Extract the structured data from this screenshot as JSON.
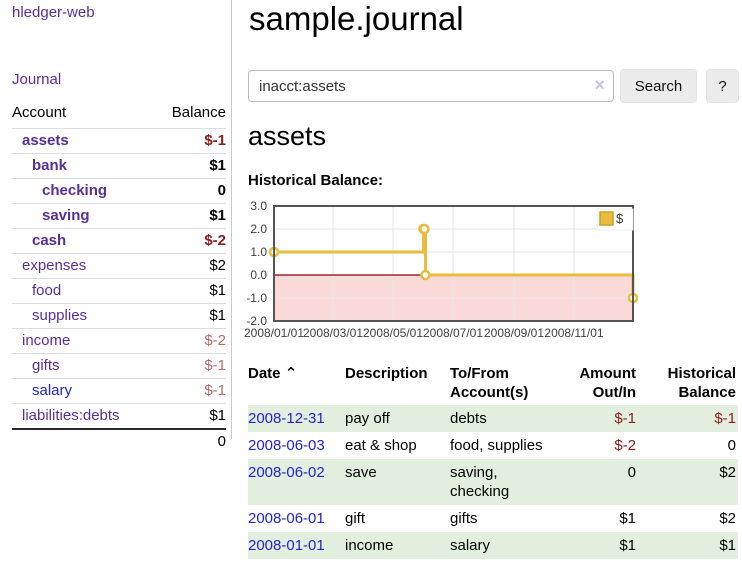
{
  "theme": {
    "link_purple": "#55309b",
    "link_blue": "#2323cf",
    "negative_strong": "#8e1b1b",
    "negative_faded": "#b76c6c",
    "stripe_green": "#e3efde",
    "chart_line": "#e9bc3d",
    "chart_negative_fill": "#fad9d9",
    "chart_zero_line": "#8b0000",
    "chart_grid": "#e6e6e6",
    "chart_border": "#545454"
  },
  "sidebar": {
    "app_title": "hledger-web",
    "nav_journal": "Journal",
    "accounts": {
      "col_account": "Account",
      "col_balance": "Balance",
      "rows": [
        {
          "name": "assets",
          "balance": "$-1",
          "indent": 1,
          "in_account": true,
          "balance_class": "neg-strong",
          "link_blue": false
        },
        {
          "name": "bank",
          "balance": "$1",
          "indent": 2,
          "in_account": true,
          "balance_class": "",
          "link_blue": false
        },
        {
          "name": "checking",
          "balance": "0",
          "indent": 3,
          "in_account": true,
          "balance_class": "",
          "link_blue": false
        },
        {
          "name": "saving",
          "balance": "$1",
          "indent": 3,
          "in_account": true,
          "balance_class": "",
          "link_blue": false
        },
        {
          "name": "cash",
          "balance": "$-2",
          "indent": 2,
          "in_account": true,
          "balance_class": "neg-strong",
          "link_blue": false
        },
        {
          "name": "expenses",
          "balance": "$2",
          "indent": 1,
          "in_account": false,
          "balance_class": "",
          "link_blue": false
        },
        {
          "name": "food",
          "balance": "$1",
          "indent": 2,
          "in_account": false,
          "balance_class": "",
          "link_blue": false
        },
        {
          "name": "supplies",
          "balance": "$1",
          "indent": 2,
          "in_account": false,
          "balance_class": "",
          "link_blue": false
        },
        {
          "name": "income",
          "balance": "$-2",
          "indent": 1,
          "in_account": false,
          "balance_class": "neg-faded",
          "link_blue": false
        },
        {
          "name": "gifts",
          "balance": "$-1",
          "indent": 2,
          "in_account": false,
          "balance_class": "neg-faded",
          "link_blue": false
        },
        {
          "name": "salary",
          "balance": "$-1",
          "indent": 2,
          "in_account": false,
          "balance_class": "neg-faded",
          "link_blue": true
        },
        {
          "name": "liabilities:debts",
          "balance": "$1",
          "indent": 1,
          "in_account": false,
          "balance_class": "",
          "link_blue": false
        }
      ],
      "total": "0"
    }
  },
  "header": {
    "title": "sample.journal"
  },
  "search": {
    "value": "inacct:assets",
    "clear_icon": "×",
    "search_button": "Search",
    "help_button": "?"
  },
  "account_page": {
    "heading": "assets",
    "chart_title": "Historical Balance:"
  },
  "chart_data": {
    "type": "line",
    "step": true,
    "title": "Historical Balance:",
    "legend": {
      "label": "$",
      "position": "top-right"
    },
    "xlim": [
      "2008-01-01",
      "2008-12-31"
    ],
    "ylim": [
      -2,
      3
    ],
    "x_ticks": [
      {
        "x": "2008-01-01",
        "label": "2008/01/01"
      },
      {
        "x": "2008-03-01",
        "label": "2008/03/01"
      },
      {
        "x": "2008-05-01",
        "label": "2008/05/01"
      },
      {
        "x": "2008-07-01",
        "label": "2008/07/01"
      },
      {
        "x": "2008-09-01",
        "label": "2008/09/01"
      },
      {
        "x": "2008-11-01",
        "label": "2008/11/01"
      }
    ],
    "y_ticks": [
      {
        "v": 3,
        "label": "3.0"
      },
      {
        "v": 2,
        "label": "2.0"
      },
      {
        "v": 1,
        "label": "1.0"
      },
      {
        "v": 0,
        "label": "0.0"
      },
      {
        "v": -1,
        "label": "-1.0"
      },
      {
        "v": -2,
        "label": "-2.0"
      }
    ],
    "series": [
      {
        "name": "$",
        "points": [
          {
            "x": "2008-01-01",
            "y": 1
          },
          {
            "x": "2008-06-01",
            "y": 2
          },
          {
            "x": "2008-06-02",
            "y": 2
          },
          {
            "x": "2008-06-03",
            "y": 0
          },
          {
            "x": "2008-12-31",
            "y": -1
          }
        ]
      }
    ],
    "grid": true,
    "negative_region_shaded": true
  },
  "register": {
    "headers": {
      "date": "Date",
      "sort_icon": "⌃",
      "description": "Description",
      "accounts": "To/From Account(s)",
      "amount": "Amount Out/In",
      "balance": "Historical Balance"
    },
    "rows": [
      {
        "date": "2008-12-31",
        "description": "pay off",
        "accounts": "debts",
        "amount": "$-1",
        "balance": "$-1",
        "amount_negative": true,
        "balance_negative": true
      },
      {
        "date": "2008-06-03",
        "description": "eat & shop",
        "accounts": "food, supplies",
        "amount": "$-2",
        "balance": "0",
        "amount_negative": true,
        "balance_negative": false
      },
      {
        "date": "2008-06-02",
        "description": "save",
        "accounts": "saving, checking",
        "amount": "0",
        "balance": "$2",
        "amount_negative": false,
        "balance_negative": false
      },
      {
        "date": "2008-06-01",
        "description": "gift",
        "accounts": "gifts",
        "amount": "$1",
        "balance": "$2",
        "amount_negative": false,
        "balance_negative": false
      },
      {
        "date": "2008-01-01",
        "description": "income",
        "accounts": "salary",
        "amount": "$1",
        "balance": "$1",
        "amount_negative": false,
        "balance_negative": false
      }
    ]
  }
}
